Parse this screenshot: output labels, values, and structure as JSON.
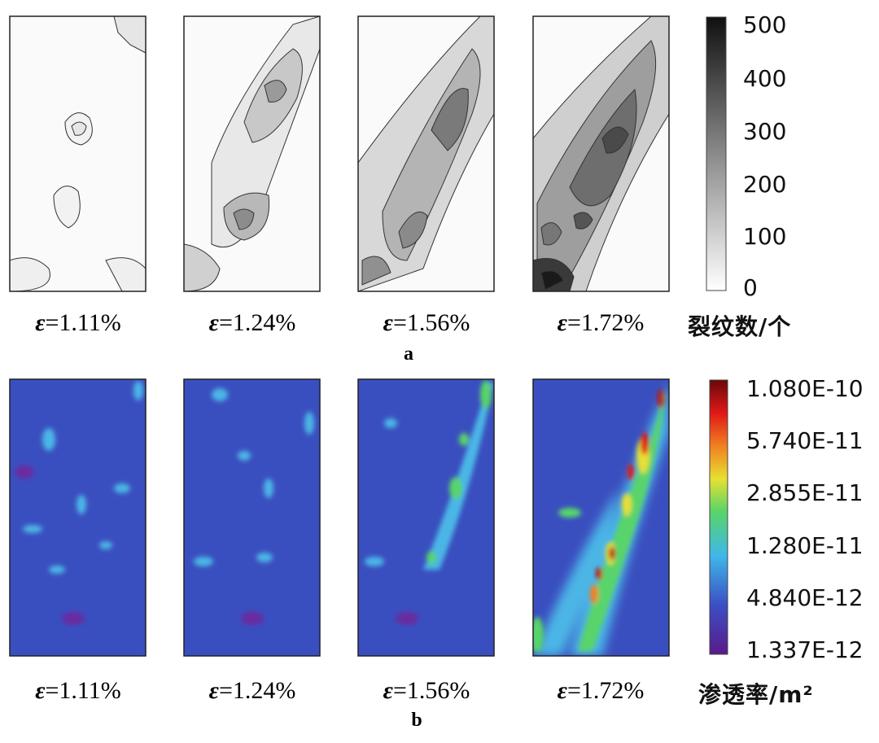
{
  "chart_data": [
    {
      "type": "heatmap",
      "panel": "a",
      "subplots": [
        {
          "label_prefix": "ε",
          "label_value": "=1.11%",
          "strain_percent": 1.11
        },
        {
          "label_prefix": "ε",
          "label_value": "=1.24%",
          "strain_percent": 1.24
        },
        {
          "label_prefix": "ε",
          "label_value": "=1.56%",
          "strain_percent": 1.56
        },
        {
          "label_prefix": "ε",
          "label_value": "=1.72%",
          "strain_percent": 1.72
        }
      ],
      "colorbar": {
        "title": "裂纹数/个",
        "ticks": [
          "500",
          "400",
          "300",
          "200",
          "100",
          "0"
        ],
        "range": [
          0,
          500
        ],
        "colors": [
          "#ffffff",
          "#111111"
        ]
      }
    },
    {
      "type": "heatmap",
      "panel": "b",
      "subplots": [
        {
          "label_prefix": "ε",
          "label_value": "=1.11%",
          "strain_percent": 1.11
        },
        {
          "label_prefix": "ε",
          "label_value": "=1.24%",
          "strain_percent": 1.24
        },
        {
          "label_prefix": "ε",
          "label_value": "=1.56%",
          "strain_percent": 1.56
        },
        {
          "label_prefix": "ε",
          "label_value": "=1.72%",
          "strain_percent": 1.72
        }
      ],
      "colorbar": {
        "title": "渗透率/m²",
        "ticks": [
          "1.080E-10",
          "5.740E-11",
          "2.855E-11",
          "1.280E-11",
          "4.840E-12",
          "1.337E-12"
        ],
        "range": [
          1.337e-12,
          1.08e-10
        ],
        "colors": [
          "#5a1a8a",
          "#3b4fc4",
          "#3fb8e8",
          "#58d46a",
          "#e8e030",
          "#f08020",
          "#e01818",
          "#6a0808"
        ]
      }
    }
  ],
  "panel_letters": {
    "a": "a",
    "b": "b"
  }
}
